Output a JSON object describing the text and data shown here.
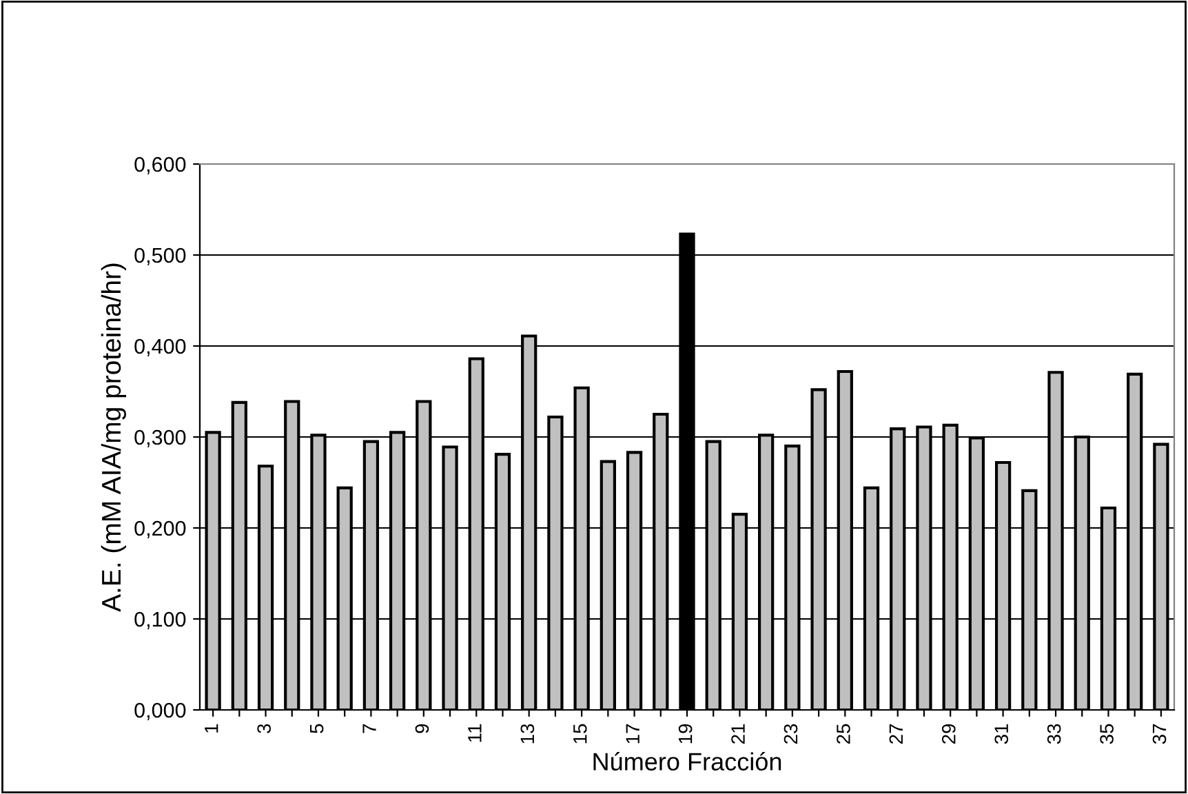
{
  "chart_data": {
    "type": "bar",
    "xlabel": "Número Fracción",
    "ylabel": "A.E. (mM AIA/mg proteina/hr)",
    "categories": [
      "1",
      null,
      "3",
      null,
      "5",
      null,
      "7",
      null,
      "9",
      null,
      "11",
      null,
      "13",
      null,
      "15",
      null,
      "17",
      null,
      "19",
      null,
      "21",
      null,
      "23",
      null,
      "25",
      null,
      "27",
      null,
      "29",
      null,
      "31",
      null,
      "33",
      null,
      "35",
      null,
      "37"
    ],
    "values": [
      0.305,
      0.338,
      0.268,
      0.339,
      0.302,
      0.244,
      0.295,
      0.305,
      0.339,
      0.289,
      0.386,
      0.281,
      0.411,
      0.322,
      0.354,
      0.273,
      0.283,
      0.325,
      0.523,
      0.295,
      0.215,
      0.302,
      0.29,
      0.352,
      0.372,
      0.244,
      0.309,
      0.311,
      0.313,
      0.299,
      0.272,
      0.241,
      0.371,
      0.3,
      0.222,
      0.369,
      0.292
    ],
    "colors": [
      "#c0c0c0",
      "#c0c0c0",
      "#c0c0c0",
      "#c0c0c0",
      "#c0c0c0",
      "#c0c0c0",
      "#c0c0c0",
      "#c0c0c0",
      "#c0c0c0",
      "#c0c0c0",
      "#c0c0c0",
      "#c0c0c0",
      "#c0c0c0",
      "#c0c0c0",
      "#c0c0c0",
      "#c0c0c0",
      "#c0c0c0",
      "#c0c0c0",
      "#000000",
      "#c0c0c0",
      "#c0c0c0",
      "#c0c0c0",
      "#c0c0c0",
      "#c0c0c0",
      "#c0c0c0",
      "#c0c0c0",
      "#c0c0c0",
      "#c0c0c0",
      "#c0c0c0",
      "#c0c0c0",
      "#c0c0c0",
      "#c0c0c0",
      "#c0c0c0",
      "#c0c0c0",
      "#c0c0c0",
      "#c0c0c0",
      "#c0c0c0"
    ],
    "ylim": [
      0,
      0.6
    ],
    "yticks": [
      {
        "value": 0,
        "label": "0,000"
      },
      {
        "value": 0.1,
        "label": "0,100"
      },
      {
        "value": 0.2,
        "label": "0,200"
      },
      {
        "value": 0.3,
        "label": "0,300"
      },
      {
        "value": 0.4,
        "label": "0,400"
      },
      {
        "value": 0.5,
        "label": "0,500"
      },
      {
        "value": 0.6,
        "label": "0,600"
      }
    ],
    "grid": "y",
    "legend": false
  }
}
